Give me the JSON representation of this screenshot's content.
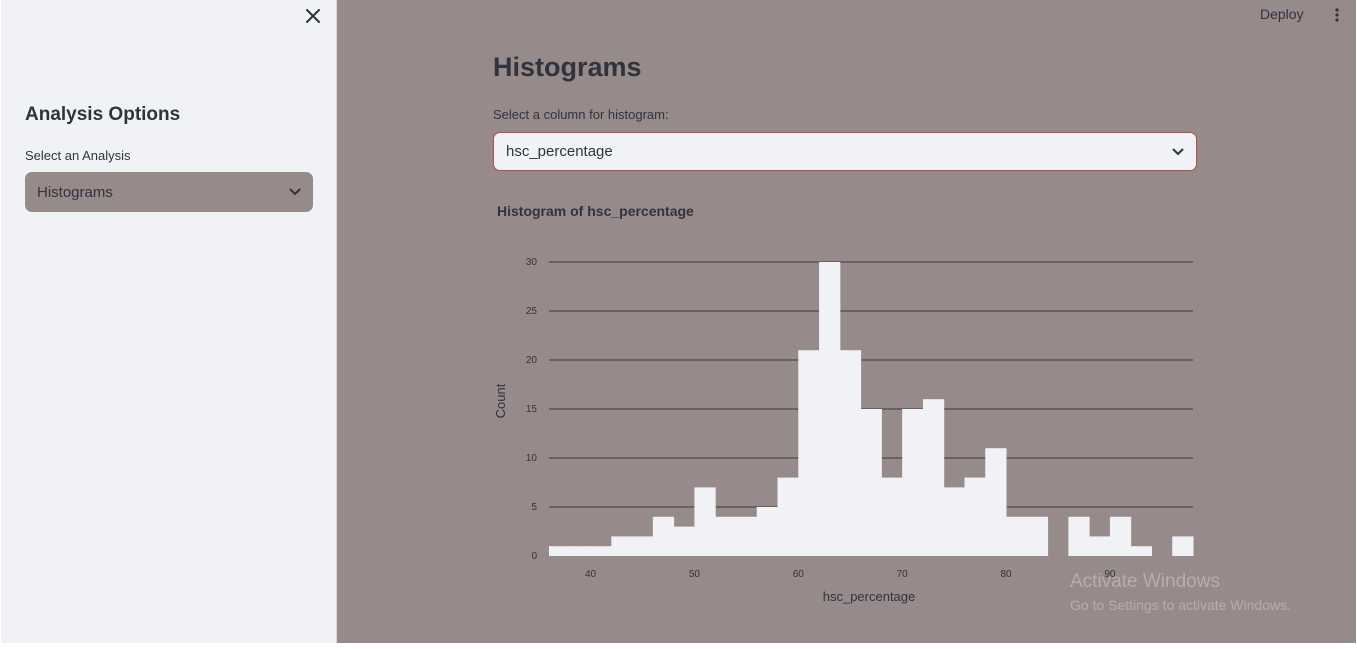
{
  "sidebar": {
    "title": "Analysis Options",
    "select_label": "Select an Analysis",
    "select_value": "Histograms",
    "bg_color": "#f0f2f6",
    "select_bg": "#978a8a"
  },
  "header": {
    "deploy_label": "Deploy"
  },
  "main": {
    "title": "Histograms",
    "column_label": "Select a column for histogram:",
    "column_value": "hsc_percentage",
    "bg_color": "#978a8a",
    "select_border": "#b94b4b"
  },
  "watermark": {
    "line1": "Activate Windows",
    "line2": "Go to Settings to activate Windows."
  },
  "chart_data": {
    "type": "bar",
    "title": "Histogram of hsc_percentage",
    "xlabel": "hsc_percentage",
    "ylabel": "Count",
    "bin_width": 2,
    "bins": [
      {
        "x0": 36,
        "x1": 38,
        "count": 1
      },
      {
        "x0": 38,
        "x1": 40,
        "count": 1
      },
      {
        "x0": 40,
        "x1": 42,
        "count": 1
      },
      {
        "x0": 42,
        "x1": 44,
        "count": 2
      },
      {
        "x0": 44,
        "x1": 46,
        "count": 2
      },
      {
        "x0": 46,
        "x1": 48,
        "count": 4
      },
      {
        "x0": 48,
        "x1": 50,
        "count": 3
      },
      {
        "x0": 50,
        "x1": 52,
        "count": 7
      },
      {
        "x0": 52,
        "x1": 54,
        "count": 4
      },
      {
        "x0": 54,
        "x1": 56,
        "count": 4
      },
      {
        "x0": 56,
        "x1": 58,
        "count": 5
      },
      {
        "x0": 58,
        "x1": 60,
        "count": 8
      },
      {
        "x0": 60,
        "x1": 62,
        "count": 21
      },
      {
        "x0": 62,
        "x1": 64,
        "count": 30
      },
      {
        "x0": 64,
        "x1": 66,
        "count": 21
      },
      {
        "x0": 66,
        "x1": 68,
        "count": 15
      },
      {
        "x0": 68,
        "x1": 70,
        "count": 8
      },
      {
        "x0": 70,
        "x1": 72,
        "count": 15
      },
      {
        "x0": 72,
        "x1": 74,
        "count": 16
      },
      {
        "x0": 74,
        "x1": 76,
        "count": 7
      },
      {
        "x0": 76,
        "x1": 78,
        "count": 8
      },
      {
        "x0": 78,
        "x1": 80,
        "count": 11
      },
      {
        "x0": 80,
        "x1": 82,
        "count": 4
      },
      {
        "x0": 82,
        "x1": 84,
        "count": 4
      },
      {
        "x0": 84,
        "x1": 86,
        "count": 0
      },
      {
        "x0": 86,
        "x1": 88,
        "count": 4
      },
      {
        "x0": 88,
        "x1": 90,
        "count": 2
      },
      {
        "x0": 90,
        "x1": 92,
        "count": 4
      },
      {
        "x0": 92,
        "x1": 94,
        "count": 1
      },
      {
        "x0": 94,
        "x1": 96,
        "count": 0
      },
      {
        "x0": 96,
        "x1": 98,
        "count": 2
      }
    ],
    "xlim": [
      36,
      98
    ],
    "ylim": [
      0,
      30
    ],
    "xticks": [
      40,
      50,
      60,
      70,
      80,
      90
    ],
    "yticks": [
      0,
      5,
      10,
      15,
      20,
      25,
      30
    ],
    "bar_color": "#f0f2f6",
    "grid": true
  }
}
